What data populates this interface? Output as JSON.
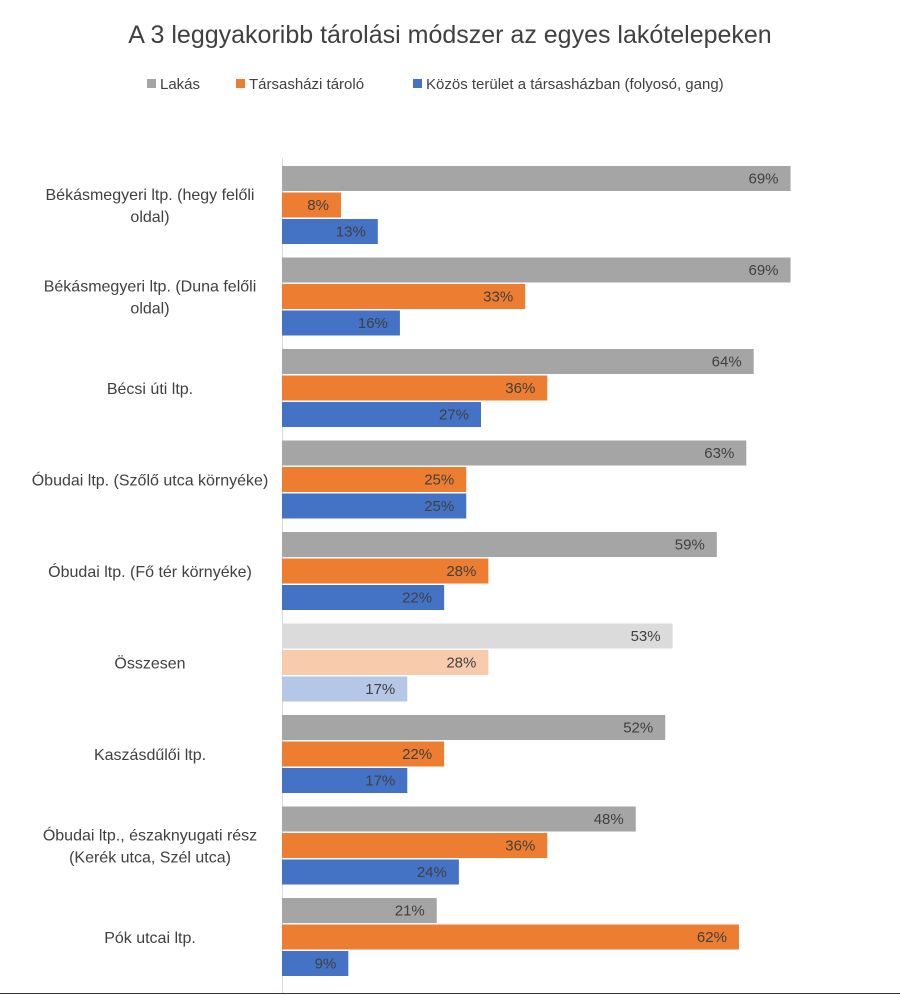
{
  "chart_data": {
    "type": "bar",
    "orientation": "horizontal",
    "title": "A 3 leggyakoribb tárolási módszer az egyes lakótelepeken",
    "xlabel": "",
    "ylabel": "",
    "xlim": [
      0,
      70
    ],
    "legend_position": "top",
    "grid": false,
    "value_suffix": "%",
    "categories": [
      [
        "Békásmegyeri ltp. (hegy felőli",
        "oldal)"
      ],
      [
        "Békásmegyeri ltp. (Duna felőli",
        "oldal)"
      ],
      [
        "Bécsi úti ltp."
      ],
      [
        "Óbudai ltp. (Szőlő utca környéke)"
      ],
      [
        "Óbudai ltp. (Fő tér környéke)"
      ],
      [
        "Összesen"
      ],
      [
        "Kaszásdűlői ltp."
      ],
      [
        "Óbudai ltp., északnyugati rész",
        "(Kerék utca, Szél utca)"
      ],
      [
        "Pók utcai ltp."
      ]
    ],
    "highlight_category_index": 5,
    "series": [
      {
        "name": "Lakás",
        "color": "#a5a5a5",
        "light_color": "#dbdbdb",
        "values": [
          69,
          69,
          64,
          63,
          59,
          53,
          52,
          48,
          21
        ]
      },
      {
        "name": "Társasházi tároló",
        "color": "#ed7d31",
        "light_color": "#f8cbad",
        "values": [
          8,
          33,
          36,
          25,
          28,
          28,
          22,
          36,
          62
        ]
      },
      {
        "name": "Közös terület a társasházban (folyosó, gang)",
        "color": "#4472c4",
        "light_color": "#b4c7e7",
        "values": [
          13,
          16,
          27,
          25,
          22,
          17,
          17,
          24,
          9
        ]
      }
    ]
  }
}
